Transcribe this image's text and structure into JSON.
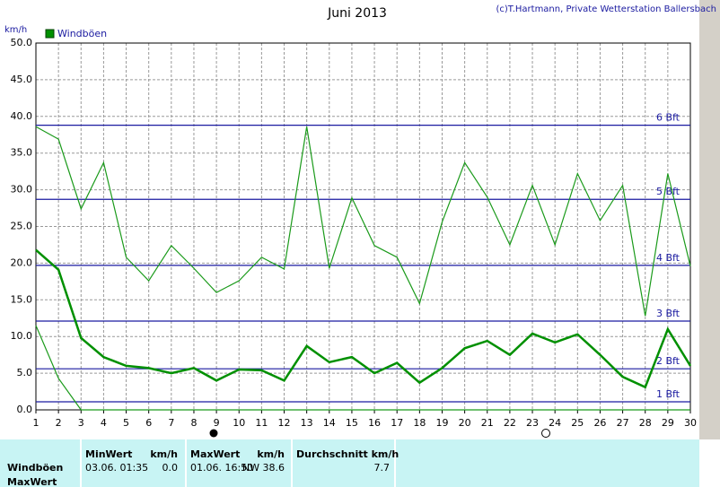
{
  "chart_data": {
    "type": "line",
    "title": "Juni 2013",
    "subtitle": "(c)T.Hartmann, Private Wetterstation Ballersbach",
    "ylabel": "km/h",
    "x": [
      1,
      2,
      3,
      4,
      5,
      6,
      7,
      8,
      9,
      10,
      11,
      12,
      13,
      14,
      15,
      16,
      17,
      18,
      19,
      20,
      21,
      22,
      23,
      24,
      25,
      26,
      27,
      28,
      29,
      30
    ],
    "xlim": [
      1,
      30
    ],
    "xticks": [
      1,
      2,
      3,
      4,
      5,
      6,
      7,
      8,
      9,
      10,
      11,
      12,
      13,
      14,
      15,
      16,
      17,
      18,
      19,
      20,
      21,
      22,
      23,
      24,
      25,
      26,
      27,
      28,
      29,
      30
    ],
    "ylim": [
      0,
      50
    ],
    "yticks": [
      {
        "value": 0,
        "label": "0.0"
      },
      {
        "value": 5,
        "label": "5.0"
      },
      {
        "value": 10,
        "label": "10.0"
      },
      {
        "value": 15,
        "label": "15.0"
      },
      {
        "value": 20,
        "label": "20.0"
      },
      {
        "value": 25,
        "label": "25.0"
      },
      {
        "value": 30,
        "label": "30.0"
      },
      {
        "value": 35,
        "label": "35.0"
      },
      {
        "value": 40,
        "label": "40.0"
      },
      {
        "value": 45,
        "label": "45.0"
      },
      {
        "value": 50,
        "label": "50.0"
      }
    ],
    "grid": true,
    "legend": "top-left",
    "reference_lines": [
      {
        "value": 38.8,
        "label": "6 Bft"
      },
      {
        "value": 28.7,
        "label": "5 Bft"
      },
      {
        "value": 19.7,
        "label": "4 Bft"
      },
      {
        "value": 12.1,
        "label": "3 Bft"
      },
      {
        "value": 5.6,
        "label": "2 Bft"
      },
      {
        "value": 1.1,
        "label": "1 Bft"
      }
    ],
    "reference_color": "#1a1aa0",
    "series": [
      {
        "name": "Windböen",
        "color": "#009000",
        "width": 2.5,
        "values": [
          21.8,
          19.1,
          9.8,
          7.2,
          6.0,
          5.7,
          5.0,
          5.7,
          4.0,
          5.5,
          5.4,
          4.0,
          8.7,
          6.5,
          7.2,
          5.0,
          6.4,
          3.7,
          5.7,
          8.4,
          9.4,
          7.5,
          10.4,
          9.2,
          10.3,
          7.5,
          4.5,
          3.1,
          11.0,
          6.0
        ]
      },
      {
        "color": "#1a9a1a",
        "width": 1.2,
        "values": [
          38.6,
          36.9,
          27.4,
          33.7,
          20.8,
          17.6,
          22.4,
          19.3,
          16.0,
          17.6,
          20.8,
          19.2,
          38.6,
          19.3,
          28.9,
          22.4,
          20.8,
          14.5,
          25.6,
          33.7,
          29.0,
          22.5,
          30.6,
          22.5,
          32.2,
          25.8,
          30.6,
          12.8,
          32.2,
          19.6
        ]
      },
      {
        "color": "#1a9a1a",
        "width": 1.2,
        "values": [
          11.5,
          4.3,
          0,
          0,
          0,
          0,
          0,
          0,
          0,
          0,
          0,
          0,
          0,
          0,
          0,
          0,
          0,
          0,
          0,
          0,
          0,
          0,
          0,
          0,
          0,
          0,
          0,
          0,
          0,
          0
        ]
      }
    ]
  },
  "table": {
    "header": [
      "MinWert",
      "km/h",
      "MaxWert",
      "km/h",
      "Durchschnitt km/h"
    ],
    "rows": [
      [
        "Windböen",
        "03.06.  01:35",
        "0.0",
        "01.06.  16:50",
        "NW 38.6",
        "7.7"
      ],
      [
        "MaxWert"
      ]
    ]
  }
}
